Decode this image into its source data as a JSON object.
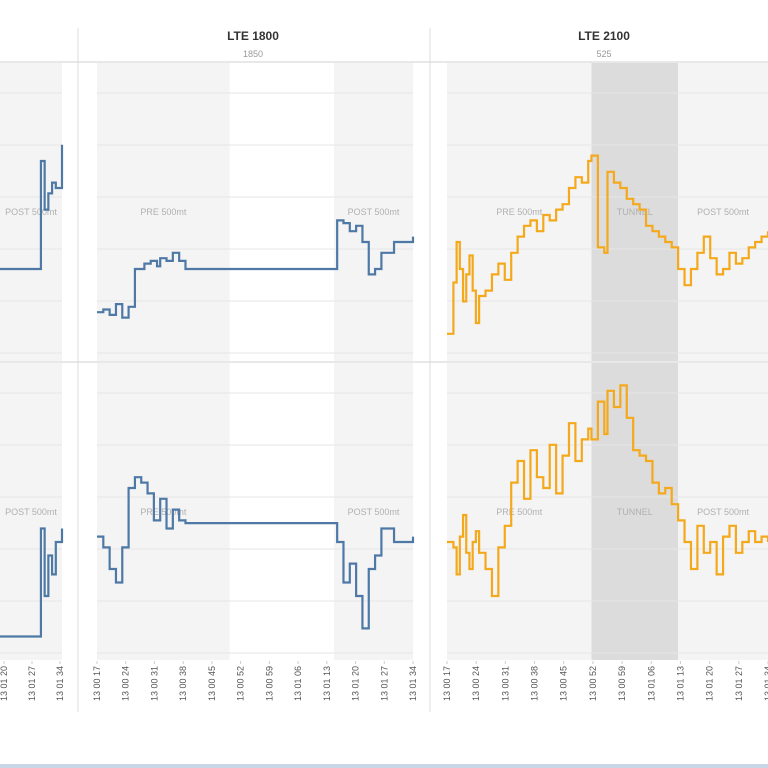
{
  "chart_data": [
    {
      "type": "line",
      "panel": "left-partial",
      "title": "",
      "subtitle": "",
      "color": "#4e79a7",
      "x_ticks": [
        "13 01 20",
        "13 01 27",
        "13 01 34"
      ],
      "zones": [
        {
          "label": "POST 500mt",
          "from": 0.0,
          "to": 1.0
        }
      ],
      "rows": [
        {
          "label_zone": "POST 500mt",
          "x": [
            0.0,
            0.55,
            0.62,
            0.66,
            0.72,
            0.78,
            0.84,
            0.9,
            1.0
          ],
          "y": [
            0.3,
            0.3,
            0.3,
            0.7,
            0.52,
            0.58,
            0.62,
            0.6,
            0.76
          ]
        },
        {
          "label_zone": "POST 500mt",
          "x": [
            0.0,
            0.55,
            0.62,
            0.66,
            0.72,
            0.78,
            0.84,
            0.9,
            1.0
          ],
          "y": [
            0.05,
            0.05,
            0.05,
            0.45,
            0.2,
            0.35,
            0.28,
            0.4,
            0.45
          ]
        }
      ]
    },
    {
      "type": "line",
      "panel": "middle",
      "title": "LTE 1800",
      "subtitle": "1850",
      "color": "#4e79a7",
      "x_ticks": [
        "13 00 17",
        "13 00 24",
        "13 00 31",
        "13 00 38",
        "13 00 45",
        "13 00 52",
        "13 00 59",
        "13 01 06",
        "13 01 13",
        "13 01 20",
        "13 01 27",
        "13 01 34"
      ],
      "zones": [
        {
          "label": "PRE 500mt",
          "from": 0.0,
          "to": 0.42
        },
        {
          "label": "",
          "from": 0.42,
          "to": 0.75
        },
        {
          "label": "POST 500mt",
          "from": 0.75,
          "to": 1.0
        }
      ],
      "rows": [
        {
          "x": [
            0.0,
            0.02,
            0.04,
            0.06,
            0.08,
            0.1,
            0.12,
            0.13,
            0.15,
            0.17,
            0.19,
            0.2,
            0.22,
            0.24,
            0.26,
            0.28,
            0.3,
            0.75,
            0.76,
            0.78,
            0.8,
            0.82,
            0.84,
            0.86,
            0.88,
            0.9,
            0.94,
            1.0
          ],
          "y": [
            0.14,
            0.15,
            0.13,
            0.17,
            0.12,
            0.16,
            0.3,
            0.3,
            0.32,
            0.33,
            0.31,
            0.34,
            0.33,
            0.36,
            0.33,
            0.3,
            0.3,
            0.3,
            0.48,
            0.47,
            0.44,
            0.46,
            0.4,
            0.28,
            0.3,
            0.36,
            0.4,
            0.42
          ]
        },
        {
          "x": [
            0.0,
            0.02,
            0.04,
            0.06,
            0.08,
            0.1,
            0.12,
            0.14,
            0.16,
            0.18,
            0.2,
            0.22,
            0.24,
            0.26,
            0.28,
            0.3,
            0.75,
            0.76,
            0.78,
            0.8,
            0.82,
            0.84,
            0.86,
            0.88,
            0.9,
            0.94,
            1.0
          ],
          "y": [
            0.42,
            0.38,
            0.3,
            0.25,
            0.38,
            0.6,
            0.64,
            0.62,
            0.58,
            0.48,
            0.56,
            0.45,
            0.52,
            0.48,
            0.47,
            0.47,
            0.47,
            0.4,
            0.25,
            0.32,
            0.2,
            0.08,
            0.3,
            0.35,
            0.45,
            0.4,
            0.42
          ]
        }
      ]
    },
    {
      "type": "line",
      "panel": "right",
      "title": "LTE 2100",
      "subtitle": "525",
      "color": "#f4a91c",
      "x_ticks": [
        "13 00 17",
        "13 00 24",
        "13 00 31",
        "13 00 38",
        "13 00 45",
        "13 00 52",
        "13 00 59",
        "13 01 06",
        "13 01 13",
        "13 01 20",
        "13 01 27",
        "13 01 34"
      ],
      "zones": [
        {
          "label": "PRE 500mt",
          "from": 0.0,
          "to": 0.45
        },
        {
          "label": "TUNNEL",
          "from": 0.45,
          "to": 0.72
        },
        {
          "label": "POST 500mt",
          "from": 0.72,
          "to": 1.0
        }
      ],
      "rows": [
        {
          "x": [
            0.0,
            0.02,
            0.03,
            0.04,
            0.05,
            0.06,
            0.07,
            0.08,
            0.09,
            0.1,
            0.12,
            0.14,
            0.16,
            0.18,
            0.2,
            0.22,
            0.24,
            0.26,
            0.28,
            0.3,
            0.32,
            0.34,
            0.36,
            0.38,
            0.4,
            0.42,
            0.44,
            0.45,
            0.47,
            0.49,
            0.5,
            0.52,
            0.54,
            0.56,
            0.58,
            0.6,
            0.62,
            0.64,
            0.66,
            0.68,
            0.7,
            0.72,
            0.74,
            0.76,
            0.78,
            0.8,
            0.82,
            0.84,
            0.86,
            0.88,
            0.9,
            0.92,
            0.94,
            0.96,
            0.98,
            1.0
          ],
          "y": [
            0.06,
            0.25,
            0.4,
            0.3,
            0.18,
            0.28,
            0.35,
            0.22,
            0.1,
            0.2,
            0.22,
            0.28,
            0.32,
            0.26,
            0.36,
            0.42,
            0.46,
            0.48,
            0.44,
            0.5,
            0.48,
            0.52,
            0.54,
            0.6,
            0.64,
            0.62,
            0.7,
            0.72,
            0.38,
            0.36,
            0.66,
            0.62,
            0.6,
            0.56,
            0.54,
            0.52,
            0.46,
            0.44,
            0.42,
            0.4,
            0.38,
            0.3,
            0.24,
            0.3,
            0.36,
            0.42,
            0.34,
            0.28,
            0.3,
            0.36,
            0.32,
            0.34,
            0.38,
            0.4,
            0.42,
            0.44
          ]
        },
        {
          "x": [
            0.0,
            0.02,
            0.03,
            0.04,
            0.05,
            0.06,
            0.07,
            0.08,
            0.09,
            0.1,
            0.12,
            0.14,
            0.16,
            0.18,
            0.2,
            0.22,
            0.24,
            0.26,
            0.28,
            0.3,
            0.32,
            0.34,
            0.36,
            0.38,
            0.4,
            0.42,
            0.44,
            0.45,
            0.47,
            0.49,
            0.5,
            0.52,
            0.54,
            0.56,
            0.58,
            0.6,
            0.62,
            0.64,
            0.66,
            0.68,
            0.7,
            0.72,
            0.74,
            0.76,
            0.78,
            0.8,
            0.82,
            0.84,
            0.86,
            0.88,
            0.9,
            0.92,
            0.94,
            0.96,
            0.98,
            1.0
          ],
          "y": [
            0.4,
            0.38,
            0.28,
            0.42,
            0.5,
            0.36,
            0.3,
            0.4,
            0.44,
            0.36,
            0.3,
            0.2,
            0.38,
            0.46,
            0.62,
            0.7,
            0.56,
            0.74,
            0.64,
            0.6,
            0.76,
            0.58,
            0.72,
            0.84,
            0.7,
            0.78,
            0.82,
            0.78,
            0.92,
            0.8,
            0.96,
            0.9,
            0.98,
            0.86,
            0.74,
            0.72,
            0.7,
            0.62,
            0.58,
            0.6,
            0.54,
            0.48,
            0.4,
            0.3,
            0.46,
            0.36,
            0.4,
            0.28,
            0.42,
            0.46,
            0.36,
            0.4,
            0.44,
            0.4,
            0.42,
            0.4
          ]
        }
      ]
    }
  ]
}
